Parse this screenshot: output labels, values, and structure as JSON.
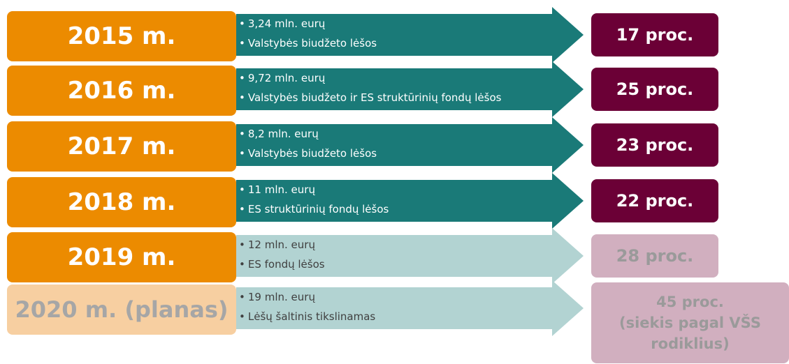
{
  "rows": [
    {
      "year": "2015 m.",
      "items": [
        "3,24 mln. eurų",
        "Valstybės biudžeto lėšos"
      ],
      "result": [
        "17 proc."
      ]
    },
    {
      "year": "2016 m.",
      "items": [
        "9,72 mln. eurų",
        "Valstybės biudžeto ir ES struktūrinių fondų lėšos"
      ],
      "result": [
        "25 proc."
      ]
    },
    {
      "year": "2017 m.",
      "items": [
        "8,2 mln. eurų",
        "Valstybės biudžeto lėšos"
      ],
      "result": [
        "23 proc."
      ]
    },
    {
      "year": "2018 m.",
      "items": [
        "11 mln. eurų",
        "ES struktūrinių fondų lėšos"
      ],
      "result": [
        "22 proc."
      ]
    },
    {
      "year": "2019 m.",
      "items": [
        "12 mln. eurų",
        "ES fondų lėšos"
      ],
      "result": [
        "28 proc."
      ]
    },
    {
      "year": "2020 m. (planas)",
      "items": [
        "19 mln. eurų",
        "Lėšų šaltinis tikslinamas"
      ],
      "result": [
        "45 proc.",
        "(siekis pagal VŠS",
        "rodiklius)"
      ]
    }
  ]
}
